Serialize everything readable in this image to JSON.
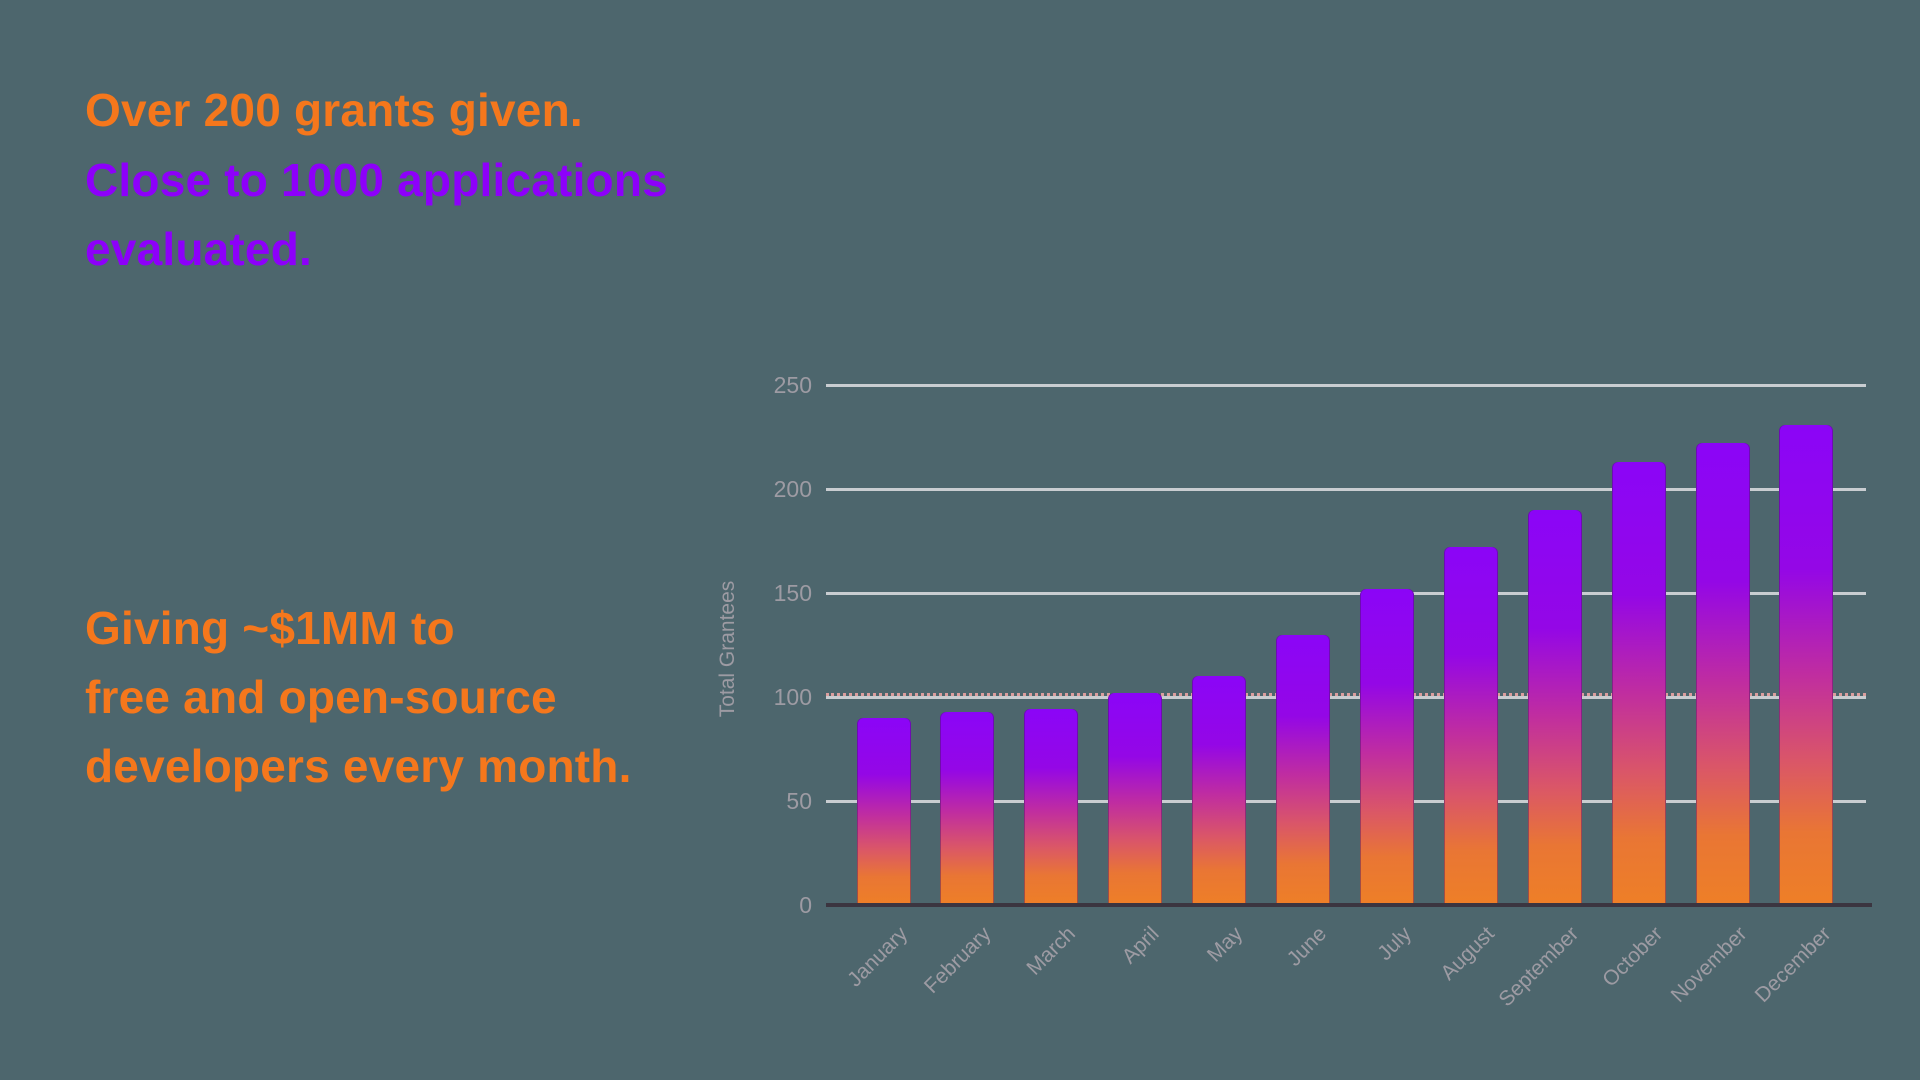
{
  "slide": {
    "heading_grants": "Over 200 grants given.",
    "heading_applications": "Close to 1000 applications evaluated.",
    "heading_giving": "Giving ~$1MM to\nfree and open-source\ndevelopers every month."
  },
  "colors": {
    "background": "#4d666d",
    "heading_orange": "#f5771c",
    "heading_purple": "#8d00fa",
    "gridline": "#c9cdd1",
    "baseline": "#3b3540",
    "axis_text": "#9d9ba3",
    "reference_line": "#dc9e9e"
  },
  "chart_data": {
    "type": "bar",
    "title": "",
    "categories": [
      "January",
      "February",
      "March",
      "April",
      "May",
      "June",
      "July",
      "August",
      "September",
      "October",
      "November",
      "December"
    ],
    "values": [
      90,
      93,
      94,
      102,
      110,
      130,
      152,
      172,
      190,
      213,
      222,
      231
    ],
    "xlabel": "",
    "ylabel": "Total Grantees",
    "ylim": [
      0,
      250
    ],
    "yticks": [
      0,
      50,
      100,
      150,
      200,
      250
    ],
    "grid": true,
    "legend": "none",
    "reference_line": {
      "value": 100,
      "style": "dotted"
    },
    "bar_gradient": [
      {
        "color": "#8b05f7",
        "pos": 0
      },
      {
        "color": "#9407e6",
        "pos": 30
      },
      {
        "color": "#c02da0",
        "pos": 52
      },
      {
        "color": "#da5668",
        "pos": 70
      },
      {
        "color": "#e97634",
        "pos": 85
      },
      {
        "color": "#ee7f27",
        "pos": 100
      }
    ]
  }
}
